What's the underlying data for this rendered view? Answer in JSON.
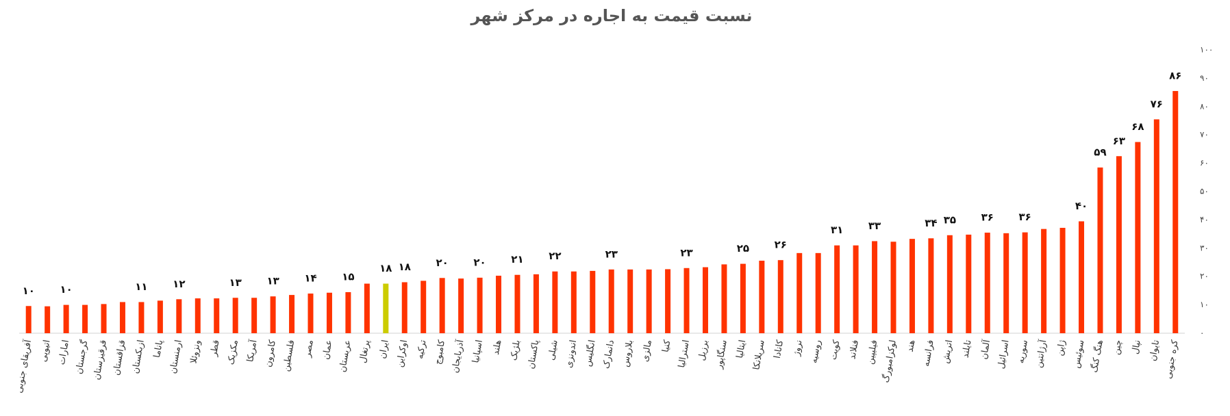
{
  "chart_data": {
    "type": "bar",
    "title": "نسبت قیمت به اجاره در مرکز شهر",
    "categories": [
      "آفریقای جنوبی",
      "اتیوپی",
      "امارات",
      "گرجستان",
      "قرقیزستان",
      "قزاقستان",
      "ازبکستان",
      "پاناما",
      "ارمنستان",
      "ونزوئلا",
      "قطر",
      "مکزیک",
      "آمریکا",
      "کامرون",
      "فلسطین",
      "مصر",
      "عمان",
      "عربستان",
      "پرتغال",
      "ایران",
      "اوکراین",
      "ترکیه",
      "کامبوج",
      "آذربایجان",
      "اسپانیا",
      "هلند",
      "بلژیک",
      "پاکستان",
      "شیلی",
      "اندونزی",
      "انگلیس",
      "دانمارک",
      "بلاروس",
      "مالزی",
      "کنیا",
      "استرالیا",
      "برزیل",
      "سنگاپور",
      "ایتالیا",
      "سریلانکا",
      "کانادا",
      "نروژ",
      "روسیه",
      "کویت",
      "فنلاند",
      "فیلیپین",
      "لوکزامبورگ",
      "هند",
      "فرانسه",
      "اتریش",
      "تایلند",
      "آلمان",
      "اسرائیل",
      "سوریه",
      "آرژانتین",
      "ژاپن",
      "سوئیس",
      "هنگ کنگ",
      "چین",
      "نپال",
      "تایوان",
      "کره جنوبی"
    ],
    "values": [
      9.6,
      9.5,
      10,
      10,
      10.3,
      11,
      11,
      11.5,
      12,
      12.3,
      12.3,
      12.5,
      12.5,
      13,
      13.5,
      14,
      14.3,
      14.5,
      17.5,
      17.5,
      18,
      18.5,
      19.5,
      19.3,
      19.6,
      20.3,
      20.6,
      20.8,
      21.8,
      21.8,
      22,
      22.5,
      22.5,
      22.5,
      22.6,
      23,
      23.3,
      24.3,
      24.5,
      25.6,
      25.8,
      28.3,
      28.3,
      31,
      31,
      32.5,
      32.3,
      33.3,
      33.5,
      34.6,
      34.8,
      35.5,
      35.3,
      35.6,
      36.8,
      37.2,
      39.5,
      58.5,
      62.5,
      67.5,
      75.5,
      85.5
    ],
    "value_labels": [
      "۱۰",
      null,
      "۱۰",
      null,
      null,
      null,
      "۱۱",
      null,
      "۱۲",
      null,
      null,
      "۱۳",
      null,
      "۱۳",
      null,
      "۱۴",
      null,
      "۱۵",
      null,
      "۱۸",
      "۱۸",
      null,
      "۲۰",
      null,
      "۲۰",
      null,
      "۲۱",
      null,
      "۲۲",
      null,
      null,
      "۲۳",
      null,
      null,
      null,
      "۲۳",
      null,
      null,
      "۲۵",
      null,
      "۲۶",
      null,
      null,
      "۳۱",
      null,
      "۳۳",
      null,
      null,
      "۳۴",
      "۳۵",
      null,
      "۳۶",
      null,
      "۳۶",
      null,
      null,
      "۴۰",
      "۵۹",
      "۶۳",
      "۶۸",
      "۷۶",
      "۸۶"
    ],
    "color": "#ff3300",
    "highlight": "ایران",
    "highlight_color": "#cccc00",
    "ylim": [
      0,
      100
    ],
    "yticks": [
      {
        "value": 0,
        "label": "۰"
      },
      {
        "value": 10,
        "label": "۱۰"
      },
      {
        "value": 20,
        "label": "۲۰"
      },
      {
        "value": 30,
        "label": "۳۰"
      },
      {
        "value": 40,
        "label": "۴۰"
      },
      {
        "value": 50,
        "label": "۵۰"
      },
      {
        "value": 60,
        "label": "۶۰"
      },
      {
        "value": 70,
        "label": "۷۰"
      },
      {
        "value": 80,
        "label": "۸۰"
      },
      {
        "value": 90,
        "label": "۹۰"
      },
      {
        "value": 100,
        "label": "۱۰۰"
      }
    ],
    "grid": false
  }
}
